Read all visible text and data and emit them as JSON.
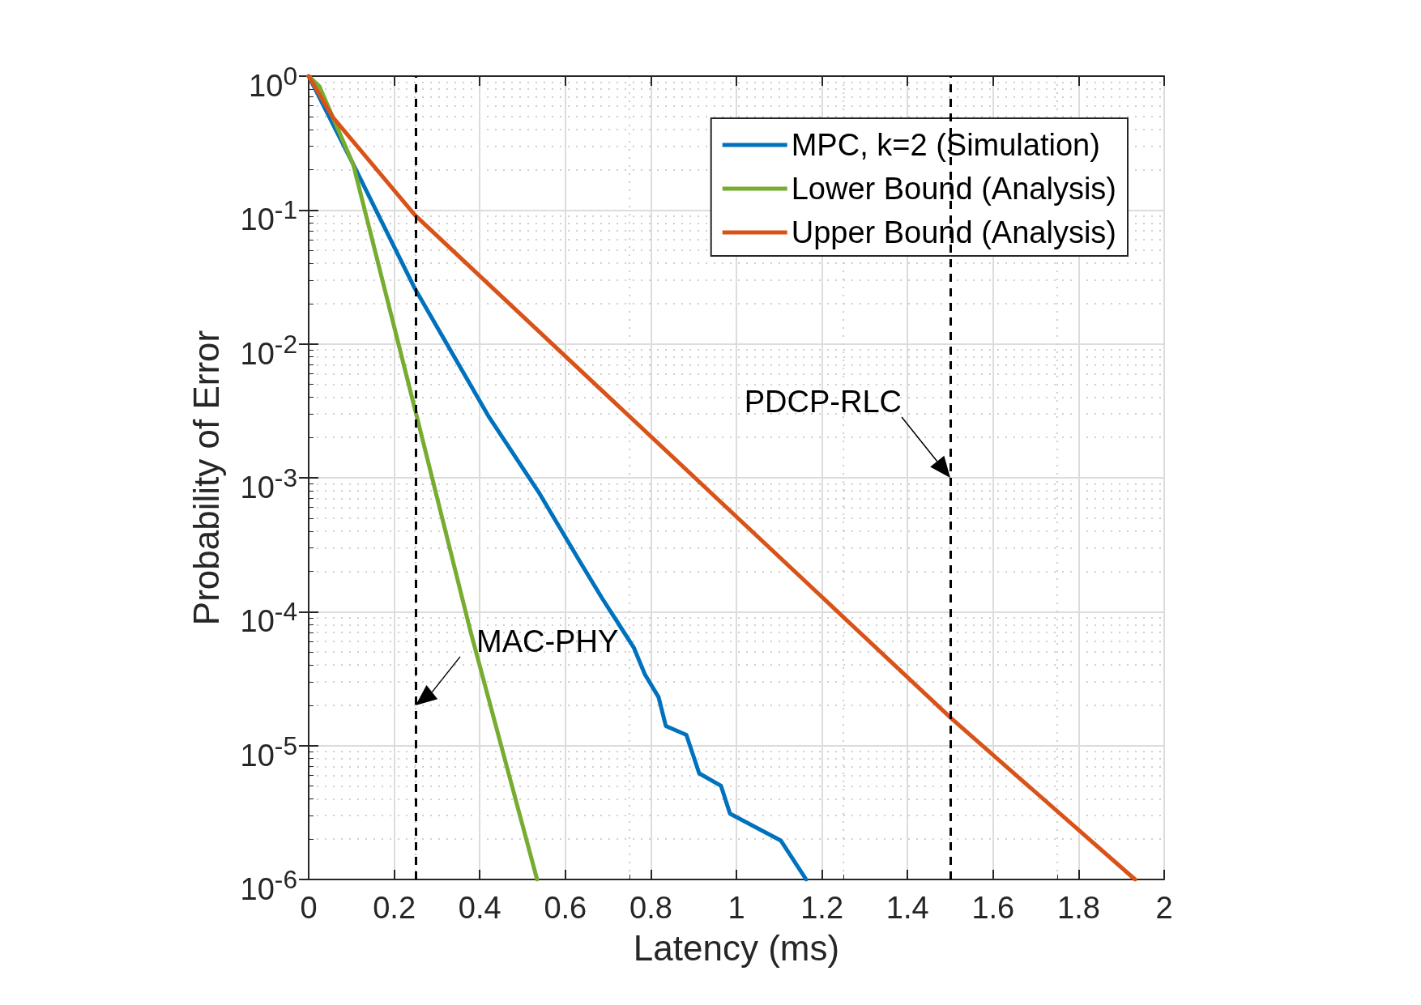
{
  "chart_data": {
    "type": "line",
    "xlabel": "Latency (ms)",
    "ylabel": "Probability of Error",
    "log": "y",
    "grid": true,
    "legend": "top right",
    "line_style": "solid",
    "marker": "none",
    "xlim": [
      0,
      2
    ],
    "xticks": [
      0,
      0.2,
      0.4,
      0.6,
      0.8,
      1,
      1.2,
      1.4,
      1.6,
      1.8,
      2
    ],
    "ylim": [
      1e-06,
      1
    ],
    "yticks": [
      {
        "value": 1e-06,
        "label": "10$^{-6}$"
      },
      {
        "value": 1e-05,
        "label": "10$^{-5}$"
      },
      {
        "value": 0.0001,
        "label": "10$^{-4}$"
      },
      {
        "value": 0.001,
        "label": "10$^{-3}$"
      },
      {
        "value": 0.01,
        "label": "10$^{-2}$"
      },
      {
        "value": 0.1,
        "label": "10$^{-1}$"
      },
      {
        "value": 1,
        "label": "10$^{0}$"
      }
    ],
    "series": [
      {
        "name": "MPC, k=2 (Simulation)",
        "color": "#0072bd",
        "x": [
          0,
          0.104,
          0.248,
          0.42,
          0.54,
          0.633,
          0.686,
          0.76,
          0.786,
          0.818,
          0.835,
          0.883,
          0.913,
          0.964,
          0.985,
          1.104,
          1.163
        ],
        "values": [
          1,
          0.22,
          0.026,
          0.0029,
          0.00076,
          0.00024,
          0.000126,
          5.4e-05,
          3.4e-05,
          2.3e-05,
          1.4e-05,
          1.2e-05,
          6.2e-06,
          5e-06,
          3.1e-06,
          1.95e-06,
          1e-06
        ]
      },
      {
        "name": "Lower Bound (Analysis)",
        "color": "#77ac30",
        "x": [
          0,
          0.025,
          0.104,
          0.248,
          0.379,
          0.534
        ],
        "values": [
          1,
          0.84,
          0.22,
          0.0033,
          7e-05,
          1e-06
        ]
      },
      {
        "name": "Upper Bound (Analysis)",
        "color": "#d95319",
        "x": [
          0,
          0.057,
          0.248,
          1.502,
          1.932
        ],
        "values": [
          1,
          0.49,
          0.092,
          1.6e-05,
          1e-06
        ]
      }
    ],
    "ref_lines": [
      {
        "axis": "x",
        "value": 0.25,
        "color": "#000000",
        "line_style": "dashed"
      },
      {
        "axis": "x",
        "value": 1.5,
        "color": "#000000",
        "line_style": "dashed"
      }
    ],
    "annotations": [
      {
        "text": "MAC-PHY",
        "x": 0.25,
        "y": 2e-05
      },
      {
        "text": "PDCP-RLC",
        "x": 1.5,
        "y": 0.001
      }
    ]
  }
}
